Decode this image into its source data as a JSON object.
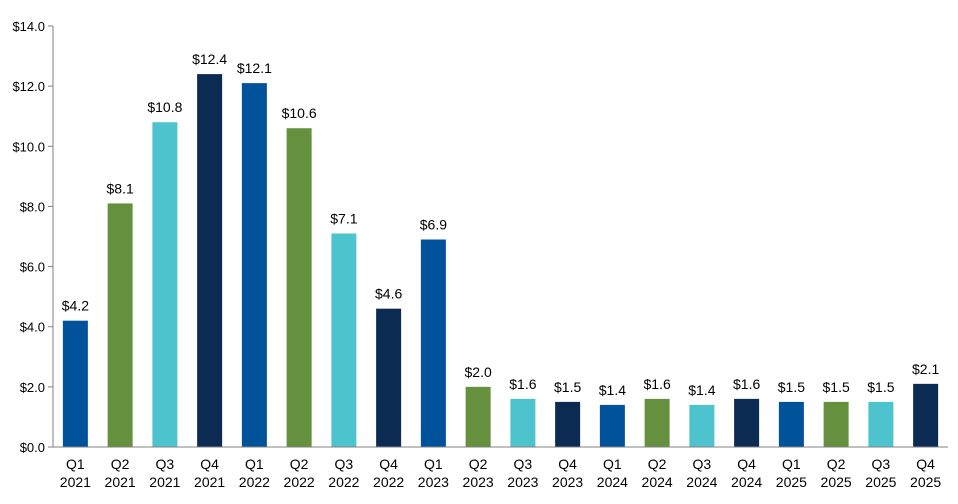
{
  "chart_data": {
    "type": "bar",
    "title": "",
    "xlabel": "",
    "ylabel": "",
    "ylim": [
      0,
      14
    ],
    "yticks": [
      0,
      2,
      4,
      6,
      8,
      10,
      12,
      14
    ],
    "ytick_labels": [
      "$0.0",
      "$2.0",
      "$4.0",
      "$6.0",
      "$8.0",
      "$10.0",
      "$12.0",
      "$14.0"
    ],
    "grid": false,
    "legend": "none",
    "categories": [
      [
        "Q1",
        "2021"
      ],
      [
        "Q2",
        "2021"
      ],
      [
        "Q3",
        "2021"
      ],
      [
        "Q4",
        "2021"
      ],
      [
        "Q1",
        "2022"
      ],
      [
        "Q2",
        "2022"
      ],
      [
        "Q3",
        "2022"
      ],
      [
        "Q4",
        "2022"
      ],
      [
        "Q1",
        "2023"
      ],
      [
        "Q2",
        "2023"
      ],
      [
        "Q3",
        "2023"
      ],
      [
        "Q4",
        "2023"
      ],
      [
        "Q1",
        "2024"
      ],
      [
        "Q2",
        "2024"
      ],
      [
        "Q3",
        "2024"
      ],
      [
        "Q4",
        "2024"
      ],
      [
        "Q1",
        "2025"
      ],
      [
        "Q2",
        "2025"
      ],
      [
        "Q3",
        "2025"
      ],
      [
        "Q4",
        "2025"
      ]
    ],
    "values": [
      4.2,
      8.1,
      10.8,
      12.4,
      12.1,
      10.6,
      7.1,
      4.6,
      6.9,
      2.0,
      1.6,
      1.5,
      1.4,
      1.6,
      1.4,
      1.6,
      1.5,
      1.5,
      1.5,
      2.1
    ],
    "data_labels": [
      "$4.2",
      "$8.1",
      "$10.8",
      "$12.4",
      "$12.1",
      "$10.6",
      "$7.1",
      "$4.6",
      "$6.9",
      "$2.0",
      "$1.6",
      "$1.5",
      "$1.4",
      "$1.6",
      "$1.4",
      "$1.6",
      "$1.5",
      "$1.5",
      "$1.5",
      "$2.1"
    ],
    "colors_by_quarter": {
      "Q1": "#00529B",
      "Q2": "#65903E",
      "Q3": "#4DC3CD",
      "Q4": "#0B2B53"
    },
    "axis_color": "#808080"
  }
}
